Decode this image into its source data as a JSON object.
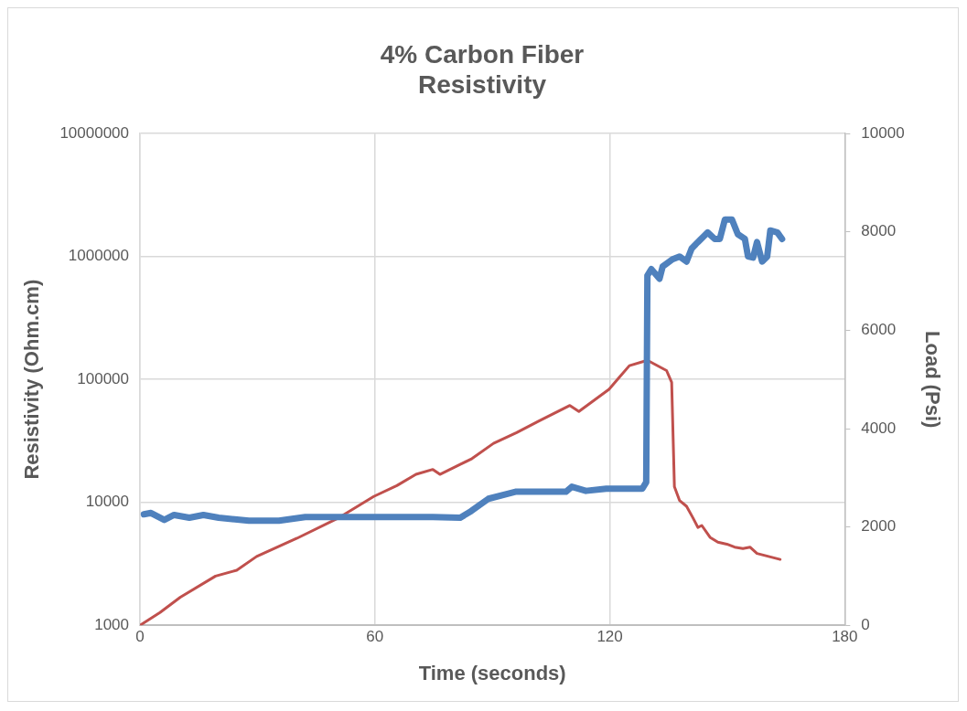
{
  "chart_data": {
    "type": "line",
    "title": "4% Carbon Fiber\nResistivity",
    "xlabel": "Time (seconds)",
    "ylabel": "Resistivity (Ohm.cm)",
    "y2label": "Load (Psi)",
    "xlim": [
      0,
      180
    ],
    "xticks": [
      0,
      60,
      120,
      180
    ],
    "ylim": [
      1000,
      10000000
    ],
    "yticks": [
      1000,
      10000,
      100000,
      1000000,
      10000000
    ],
    "y2lim": [
      0,
      10000
    ],
    "y2ticks": [
      0,
      2000,
      4000,
      6000,
      8000,
      10000
    ],
    "log": "y",
    "grid": true,
    "legend": false,
    "marker": "none",
    "line_style": "solid",
    "series": [
      {
        "color": "#4f81bd",
        "x": [
          1,
          2.8,
          6.2,
          8.7,
          12.6,
          16.2,
          20.1,
          27.8,
          35.5,
          42.2,
          57.6,
          74.8,
          81.8,
          84.6,
          89,
          94.1,
          95.9,
          108.8,
          110.3,
          113.9,
          119.1,
          128.3,
          129.3,
          129.6,
          130.6,
          132.7,
          133.5,
          136,
          137.8,
          139.6,
          140.9,
          142.5,
          145,
          146.8,
          148.1,
          149.4,
          151.2,
          152.7,
          154.5,
          155.3,
          156.6,
          157.6,
          158.9,
          160.2,
          161,
          162.8,
          164
        ],
        "values": [
          8000,
          8200,
          7200,
          7900,
          7500,
          7900,
          7500,
          7100,
          7100,
          7600,
          7600,
          7600,
          7500,
          8500,
          10700,
          11800,
          12200,
          12200,
          13400,
          12400,
          12900,
          12900,
          14600,
          700000,
          790000,
          660000,
          830000,
          950000,
          1000000,
          910000,
          1160000,
          1310000,
          1570000,
          1390000,
          1390000,
          2000000,
          2000000,
          1520000,
          1390000,
          1000000,
          980000,
          1310000,
          910000,
          1000000,
          1630000,
          1570000,
          1390000
        ]
      },
      {
        "color": "#c0504d",
        "axis": "y2",
        "x": [
          0,
          5.1,
          10.3,
          19.3,
          24.7,
          29.8,
          40.1,
          50.4,
          59.7,
          65.6,
          70.5,
          74.8,
          76.6,
          84.8,
          90.3,
          96.2,
          101.8,
          109.8,
          112.1,
          119.8,
          122.4,
          125,
          129.6,
          134.5,
          135.8,
          136.5,
          137.8,
          139.6,
          141.2,
          142.5,
          143.5,
          145.6,
          147.6,
          149.9,
          151.9,
          154,
          155.8,
          157.6,
          163.5
        ],
        "values": [
          0,
          260,
          570,
          1000,
          1120,
          1400,
          1770,
          2170,
          2620,
          2840,
          3070,
          3170,
          3070,
          3390,
          3700,
          3920,
          4150,
          4470,
          4350,
          4800,
          5040,
          5280,
          5390,
          5180,
          4940,
          2820,
          2540,
          2420,
          2190,
          1990,
          2030,
          1790,
          1690,
          1650,
          1590,
          1560,
          1590,
          1460,
          1340
        ]
      }
    ]
  }
}
